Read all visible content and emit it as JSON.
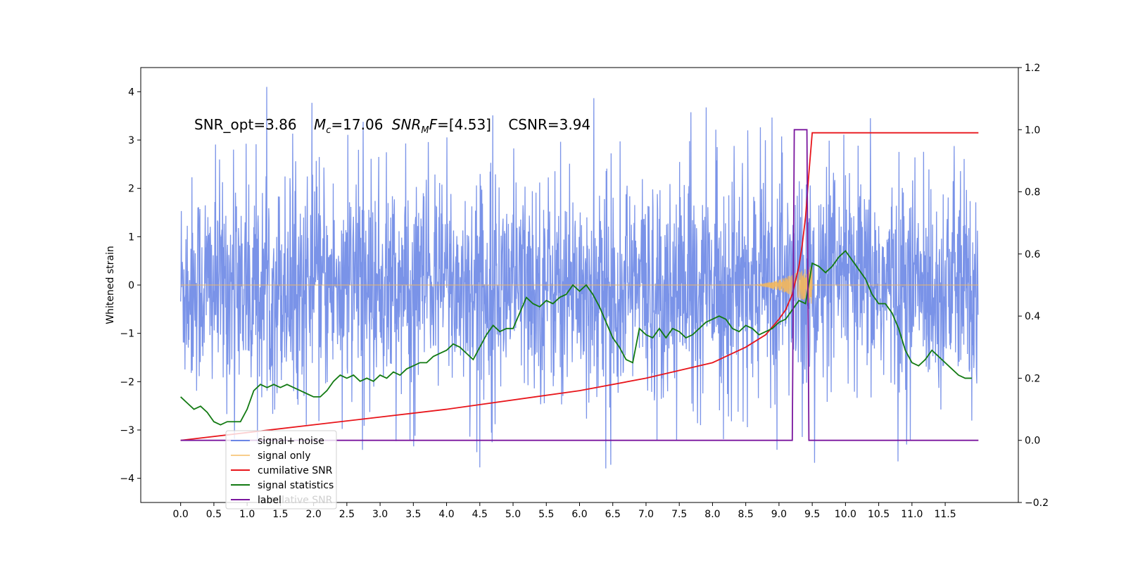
{
  "chart_data": {
    "type": "line",
    "annotation": {
      "snr_opt": "SNR_opt=3.86",
      "mc_symbol": "M",
      "mc_sub": "c",
      "mc_value": "=17.06",
      "snrmf_symbol": "SNR",
      "snrmf_sub": "M",
      "snrmf_F": "F",
      "snrmf_value": "=[4.53]",
      "csnr": "CSNR=3.94"
    },
    "ylabel": "Whitened strain",
    "xlim": [
      -0.6,
      12.6
    ],
    "ylim": [
      -4.5,
      4.5
    ],
    "y2lim": [
      -0.2,
      1.2
    ],
    "x_ticks": [
      "0.0",
      "0.5",
      "1.0",
      "1.5",
      "2.0",
      "2.5",
      "3.0",
      "3.5",
      "4.0",
      "4.5",
      "5.0",
      "5.5",
      "6.0",
      "6.5",
      "7.0",
      "7.5",
      "8.0",
      "8.5",
      "9.0",
      "9.5",
      "10.0",
      "10.5",
      "11.0",
      "11.5"
    ],
    "y_ticks": [
      "−4",
      "−3",
      "−2",
      "−1",
      "0",
      "1",
      "2",
      "3",
      "4"
    ],
    "y2_ticks": [
      "−0.2",
      "0.0",
      "0.2",
      "0.4",
      "0.6",
      "0.8",
      "1.0",
      "1.2"
    ],
    "colors": {
      "noise": "#6b87e6",
      "signal": "#f5b85a",
      "cumulative": "#e8151b",
      "statistics": "#127a12",
      "label": "#7a169e"
    },
    "series": [
      {
        "name": "signal+ noise",
        "axis": "left",
        "description_of_values": "whitened strain noise, roughly gaussian std ~1.1, spanning x 0 to 12"
      },
      {
        "name": "signal only",
        "axis": "left",
        "x_start": 8.6,
        "x_peak": 9.5,
        "peak_amplitude": 0.4
      },
      {
        "name": "cumilative SNR",
        "axis": "right",
        "x": [
          0.0,
          2.0,
          4.0,
          6.0,
          7.0,
          8.0,
          8.5,
          8.8,
          9.0,
          9.1,
          9.2,
          9.3,
          9.35,
          9.4,
          9.45,
          9.5,
          12.0
        ],
        "values": [
          0.0,
          0.05,
          0.1,
          0.16,
          0.2,
          0.25,
          0.3,
          0.34,
          0.39,
          0.42,
          0.47,
          0.56,
          0.63,
          0.72,
          0.86,
          0.99,
          0.99
        ]
      },
      {
        "name": "signal statistics",
        "axis": "right",
        "x": [
          0.0,
          0.1,
          0.2,
          0.3,
          0.4,
          0.5,
          0.6,
          0.7,
          0.8,
          0.9,
          1.0,
          1.1,
          1.2,
          1.3,
          1.4,
          1.5,
          1.6,
          1.7,
          1.8,
          1.9,
          2.0,
          2.1,
          2.2,
          2.3,
          2.4,
          2.5,
          2.6,
          2.7,
          2.8,
          2.9,
          3.0,
          3.1,
          3.2,
          3.3,
          3.4,
          3.5,
          3.6,
          3.7,
          3.8,
          3.9,
          4.0,
          4.1,
          4.2,
          4.3,
          4.4,
          4.5,
          4.6,
          4.7,
          4.8,
          4.9,
          5.0,
          5.1,
          5.2,
          5.3,
          5.4,
          5.5,
          5.6,
          5.7,
          5.8,
          5.9,
          6.0,
          6.1,
          6.2,
          6.3,
          6.4,
          6.5,
          6.6,
          6.7,
          6.8,
          6.9,
          7.0,
          7.1,
          7.2,
          7.3,
          7.4,
          7.5,
          7.6,
          7.7,
          7.8,
          7.9,
          8.0,
          8.1,
          8.2,
          8.3,
          8.4,
          8.5,
          8.6,
          8.7,
          8.8,
          8.9,
          9.0,
          9.1,
          9.2,
          9.3,
          9.4,
          9.5,
          9.6,
          9.7,
          9.8,
          9.9,
          10.0,
          10.1,
          10.2,
          10.3,
          10.4,
          10.5,
          10.6,
          10.7,
          10.8,
          10.9,
          11.0,
          11.1,
          11.2,
          11.3,
          11.4,
          11.5,
          11.6,
          11.7,
          11.8,
          11.9
        ],
        "values": [
          0.14,
          0.12,
          0.1,
          0.11,
          0.09,
          0.06,
          0.05,
          0.06,
          0.06,
          0.06,
          0.1,
          0.16,
          0.18,
          0.17,
          0.18,
          0.17,
          0.18,
          0.17,
          0.16,
          0.15,
          0.14,
          0.14,
          0.16,
          0.19,
          0.21,
          0.2,
          0.21,
          0.19,
          0.2,
          0.19,
          0.21,
          0.2,
          0.22,
          0.21,
          0.23,
          0.24,
          0.25,
          0.25,
          0.27,
          0.28,
          0.29,
          0.31,
          0.3,
          0.28,
          0.26,
          0.3,
          0.34,
          0.37,
          0.35,
          0.36,
          0.36,
          0.41,
          0.46,
          0.44,
          0.43,
          0.45,
          0.44,
          0.46,
          0.47,
          0.5,
          0.48,
          0.5,
          0.47,
          0.43,
          0.38,
          0.33,
          0.3,
          0.26,
          0.25,
          0.36,
          0.34,
          0.33,
          0.36,
          0.33,
          0.36,
          0.35,
          0.33,
          0.34,
          0.36,
          0.38,
          0.39,
          0.4,
          0.39,
          0.36,
          0.35,
          0.37,
          0.36,
          0.34,
          0.35,
          0.36,
          0.38,
          0.39,
          0.42,
          0.45,
          0.44,
          0.57,
          0.56,
          0.54,
          0.56,
          0.59,
          0.61,
          0.58,
          0.55,
          0.52,
          0.47,
          0.44,
          0.44,
          0.41,
          0.36,
          0.29,
          0.25,
          0.24,
          0.26,
          0.29,
          0.27,
          0.25,
          0.23,
          0.21,
          0.2,
          0.2
        ]
      },
      {
        "name": "label",
        "axis": "right",
        "x": [
          0.0,
          9.2,
          9.23,
          9.42,
          9.45,
          12.0
        ],
        "values": [
          0.0,
          0.0,
          1.0,
          1.0,
          0.0,
          0.0
        ]
      }
    ],
    "legend": {
      "placement": "lower-left",
      "entries": [
        "signal+ noise",
        "signal only",
        "cumilative SNR",
        "signal statistics",
        "label"
      ],
      "ghost_text": "cumilative SNR"
    }
  }
}
